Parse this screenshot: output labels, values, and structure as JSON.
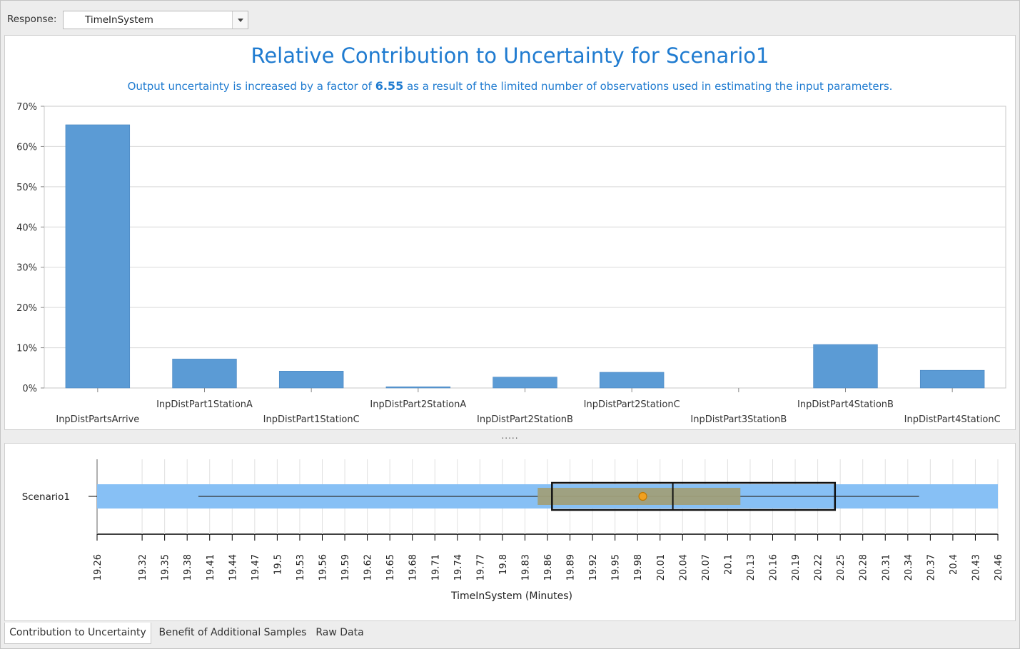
{
  "toolbar": {
    "response_label": "Response:",
    "response_value": "TimeInSystem"
  },
  "chart_data": [
    {
      "type": "bar",
      "title": "Relative Contribution to Uncertainty for Scenario1",
      "subtitle_prefix": "Output uncertainty is increased by a factor of",
      "subtitle_factor": "6.55",
      "subtitle_suffix": "as a result of the limited number of observations used in estimating the input parameters.",
      "categories": [
        "InpDistPartsArrive",
        "InpDistPart1StationA",
        "InpDistPart1StationC",
        "InpDistPart2StationA",
        "InpDistPart2StationB",
        "InpDistPart2StationC",
        "InpDistPart3StationB",
        "InpDistPart4StationB",
        "InpDistPart4StationC"
      ],
      "values": [
        65.4,
        7.2,
        4.2,
        0.3,
        2.7,
        3.9,
        0.0,
        10.8,
        4.4
      ],
      "y_ticks": [
        "0%",
        "10%",
        "20%",
        "30%",
        "40%",
        "50%",
        "60%",
        "70%"
      ],
      "ylim": [
        0,
        70
      ],
      "grid": true,
      "bar_color": "#5b9bd5",
      "title_color": "#1f7bd0"
    },
    {
      "type": "box",
      "category": "Scenario1",
      "xlabel": "TimeInSystem (Minutes)",
      "xlim": [
        19.26,
        20.46
      ],
      "x_ticks": [
        "19.26",
        "19.32",
        "19.35",
        "19.38",
        "19.41",
        "19.44",
        "19.47",
        "19.5",
        "19.53",
        "19.56",
        "19.59",
        "19.62",
        "19.65",
        "19.68",
        "19.71",
        "19.74",
        "19.77",
        "19.8",
        "19.83",
        "19.86",
        "19.89",
        "19.92",
        "19.95",
        "19.98",
        "20.01",
        "20.04",
        "20.07",
        "20.1",
        "20.13",
        "20.16",
        "20.19",
        "20.22",
        "20.25",
        "20.28",
        "20.31",
        "20.34",
        "20.37",
        "20.4",
        "20.43",
        "20.46"
      ],
      "range_band": [
        19.26,
        20.46
      ],
      "whisker": [
        19.395,
        20.355
      ],
      "box": [
        19.866,
        20.243
      ],
      "median": 20.027,
      "mean": 19.987,
      "mean_ci": [
        19.847,
        20.117
      ],
      "band_color": "#87c0f5",
      "ci_color": "#a09f7a",
      "mean_color": "#f0a020"
    }
  ],
  "tabs": [
    {
      "label": "Contribution to Uncertainty"
    },
    {
      "label": "Benefit of Additional Samples"
    },
    {
      "label": "Raw Data"
    }
  ],
  "splitter_grip": "....."
}
